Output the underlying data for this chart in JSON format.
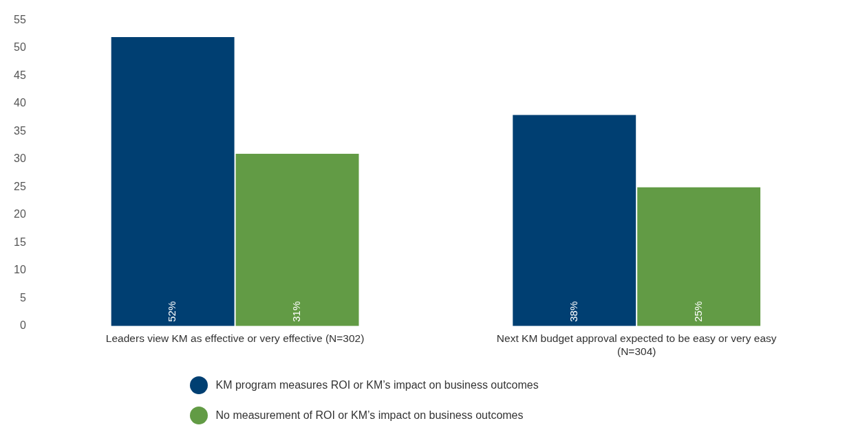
{
  "chart_data": {
    "type": "bar",
    "categories": [
      "Leaders view KM as effective or very effective (N=302)",
      "Next KM budget approval expected to be easy or very easy (N=304)"
    ],
    "series": [
      {
        "name": "KM program measures ROI or KM’s impact on business outcomes",
        "color": "#003f72",
        "values": [
          52,
          38
        ],
        "value_labels": [
          "52%",
          "38%"
        ]
      },
      {
        "name": "No measurement of ROI or KM’s impact on business outcomes",
        "color": "#629b45",
        "values": [
          31,
          25
        ],
        "value_labels": [
          "31%",
          "25%"
        ]
      }
    ],
    "ylim": [
      0,
      55
    ],
    "yticks": [
      0,
      5,
      10,
      15,
      20,
      25,
      30,
      35,
      40,
      45,
      50,
      55
    ],
    "grid": false,
    "legend": "bottom"
  }
}
